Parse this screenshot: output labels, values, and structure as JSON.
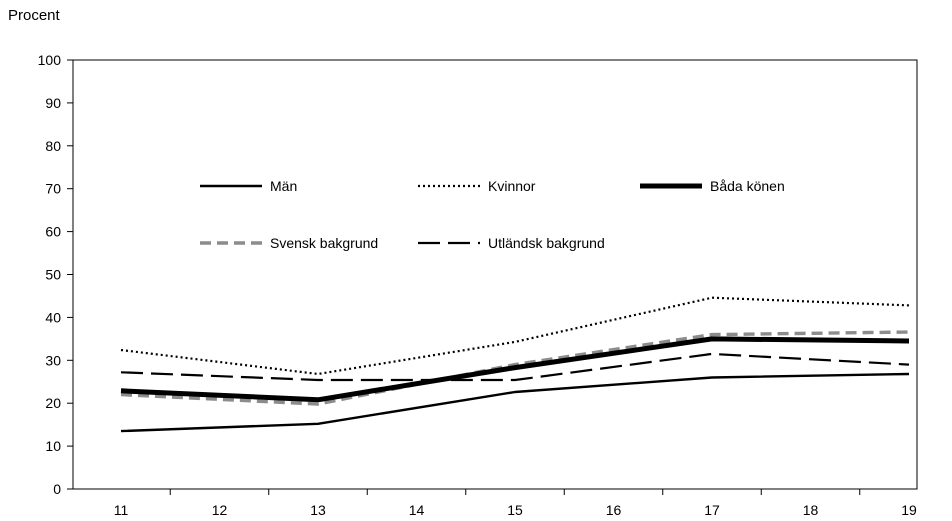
{
  "chart_data": {
    "type": "line",
    "ylabel": "Procent",
    "xlabel": "",
    "ylim": [
      0,
      100
    ],
    "yticks": [
      0,
      10,
      20,
      30,
      40,
      50,
      60,
      70,
      80,
      90,
      100
    ],
    "x": [
      11,
      12,
      13,
      14,
      15,
      16,
      17,
      18,
      19
    ],
    "grid": false,
    "legend_position": "upper-center",
    "series": [
      {
        "name": "Män",
        "style": "solid",
        "color": "#000000",
        "points": [
          [
            11,
            13.5
          ],
          [
            13,
            15.2
          ],
          [
            15,
            22.6
          ],
          [
            17,
            26.0
          ],
          [
            19,
            26.8
          ]
        ]
      },
      {
        "name": "Kvinnor",
        "style": "dotted",
        "color": "#000000",
        "points": [
          [
            11,
            32.4
          ],
          [
            13,
            26.8
          ],
          [
            15,
            34.3
          ],
          [
            17,
            44.6
          ],
          [
            19,
            42.8
          ]
        ]
      },
      {
        "name": "Båda könen",
        "style": "thick",
        "color": "#000000",
        "points": [
          [
            11,
            22.9
          ],
          [
            13,
            20.8
          ],
          [
            15,
            28.3
          ],
          [
            17,
            35.0
          ],
          [
            19,
            34.5
          ]
        ]
      },
      {
        "name": "Svensk bakgrund",
        "style": "gray-dashed",
        "color": "#8c8c8c",
        "points": [
          [
            11,
            22.0
          ],
          [
            13,
            19.8
          ],
          [
            15,
            29.0
          ],
          [
            17,
            36.0
          ],
          [
            19,
            36.6
          ]
        ]
      },
      {
        "name": "Utländsk bakgrund",
        "style": "long-dashed",
        "color": "#000000",
        "points": [
          [
            11,
            27.2
          ],
          [
            13,
            25.4
          ],
          [
            15,
            25.4
          ],
          [
            17,
            31.5
          ],
          [
            19,
            29.0
          ]
        ]
      }
    ]
  }
}
